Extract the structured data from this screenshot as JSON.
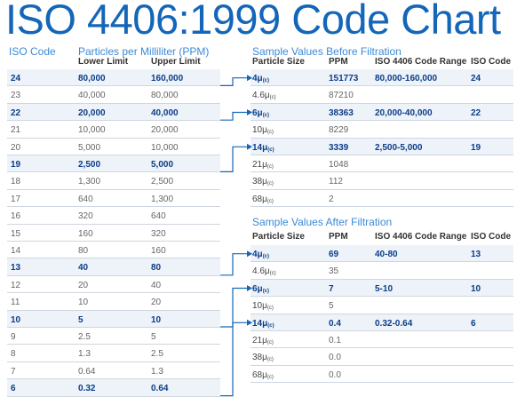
{
  "title": "ISO 4406:1999 Code Chart",
  "left": {
    "col_iso": "ISO Code",
    "col_ppm": "Particles per Milliliter (PPM)",
    "col_lower": "Lower Limit",
    "col_upper": "Upper Limit",
    "rows": [
      {
        "code": "24",
        "lower": "80,000",
        "upper": "160,000",
        "hl": true
      },
      {
        "code": "23",
        "lower": "40,000",
        "upper": "80,000",
        "hl": false
      },
      {
        "code": "22",
        "lower": "20,000",
        "upper": "40,000",
        "hl": true
      },
      {
        "code": "21",
        "lower": "10,000",
        "upper": "20,000",
        "hl": false
      },
      {
        "code": "20",
        "lower": "5,000",
        "upper": "10,000",
        "hl": false
      },
      {
        "code": "19",
        "lower": "2,500",
        "upper": "5,000",
        "hl": true
      },
      {
        "code": "18",
        "lower": "1,300",
        "upper": "2,500",
        "hl": false
      },
      {
        "code": "17",
        "lower": "640",
        "upper": "1,300",
        "hl": false
      },
      {
        "code": "16",
        "lower": "320",
        "upper": "640",
        "hl": false
      },
      {
        "code": "15",
        "lower": "160",
        "upper": "320",
        "hl": false
      },
      {
        "code": "14",
        "lower": "80",
        "upper": "160",
        "hl": false
      },
      {
        "code": "13",
        "lower": "40",
        "upper": "80",
        "hl": true
      },
      {
        "code": "12",
        "lower": "20",
        "upper": "40",
        "hl": false
      },
      {
        "code": "11",
        "lower": "10",
        "upper": "20",
        "hl": false
      },
      {
        "code": "10",
        "lower": "5",
        "upper": "10",
        "hl": true
      },
      {
        "code": "9",
        "lower": "2.5",
        "upper": "5",
        "hl": false
      },
      {
        "code": "8",
        "lower": "1.3",
        "upper": "2.5",
        "hl": false
      },
      {
        "code": "7",
        "lower": "0.64",
        "upper": "1.3",
        "hl": false
      },
      {
        "code": "6",
        "lower": "0.32",
        "upper": "0.64",
        "hl": true
      }
    ]
  },
  "before": {
    "heading": "Sample Values Before Filtration",
    "col_size": "Particle Size",
    "col_ppm": "PPM",
    "col_range": "ISO 4406 Code Range",
    "col_code": "ISO Code",
    "rows": [
      {
        "size": "4μ",
        "sub": "(c)",
        "ppm": "151773",
        "range": "80,000-160,000",
        "code": "24",
        "hl": true
      },
      {
        "size": "4.6μ",
        "sub": "(c)",
        "ppm": "87210",
        "range": "",
        "code": "",
        "hl": false
      },
      {
        "size": "6μ",
        "sub": "(c)",
        "ppm": "38363",
        "range": "20,000-40,000",
        "code": "22",
        "hl": true
      },
      {
        "size": "10μ",
        "sub": "(c)",
        "ppm": "8229",
        "range": "",
        "code": "",
        "hl": false
      },
      {
        "size": "14μ",
        "sub": "(c)",
        "ppm": "3339",
        "range": "2,500-5,000",
        "code": "19",
        "hl": true
      },
      {
        "size": "21μ",
        "sub": "(c)",
        "ppm": "1048",
        "range": "",
        "code": "",
        "hl": false
      },
      {
        "size": "38μ",
        "sub": "(c)",
        "ppm": "112",
        "range": "",
        "code": "",
        "hl": false
      },
      {
        "size": "68μ",
        "sub": "(c)",
        "ppm": "2",
        "range": "",
        "code": "",
        "hl": false
      }
    ]
  },
  "after": {
    "heading": "Sample Values After Filtration",
    "col_size": "Particle Size",
    "col_ppm": "PPM",
    "col_range": "ISO 4406 Code Range",
    "col_code": "ISO Code",
    "rows": [
      {
        "size": "4μ",
        "sub": "(c)",
        "ppm": "69",
        "range": "40-80",
        "code": "13",
        "hl": true
      },
      {
        "size": "4.6μ",
        "sub": "(c)",
        "ppm": "35",
        "range": "",
        "code": "",
        "hl": false
      },
      {
        "size": "6μ",
        "sub": "(c)",
        "ppm": "7",
        "range": "5-10",
        "code": "10",
        "hl": true
      },
      {
        "size": "10μ",
        "sub": "(c)",
        "ppm": "5",
        "range": "",
        "code": "",
        "hl": false
      },
      {
        "size": "14μ",
        "sub": "(c)",
        "ppm": "0.4",
        "range": "0.32-0.64",
        "code": "6",
        "hl": true
      },
      {
        "size": "21μ",
        "sub": "(c)",
        "ppm": "0.1",
        "range": "",
        "code": "",
        "hl": false
      },
      {
        "size": "38μ",
        "sub": "(c)",
        "ppm": "0.0",
        "range": "",
        "code": "",
        "hl": false
      },
      {
        "size": "68μ",
        "sub": "(c)",
        "ppm": "0.0",
        "range": "",
        "code": "",
        "hl": false
      }
    ]
  },
  "colors": {
    "accent": "#1466b8",
    "highlight_bg": "#eef3f9",
    "highlight_text": "#0b3d8a",
    "rule": "#cfd6de"
  }
}
